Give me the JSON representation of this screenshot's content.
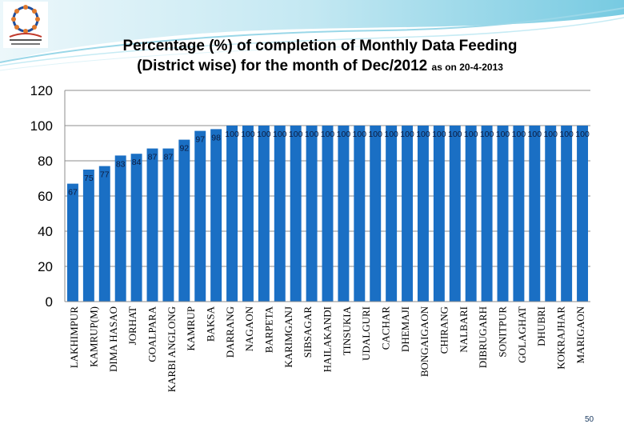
{
  "slide": {
    "title_line1": "Percentage (%) of completion of Monthly Data Feeding",
    "title_line2": "(District wise) for the month of Dec/2012",
    "title_suffix": "as on 20-4-2013",
    "page_number": "50",
    "logo": "mid-day-meal-logo"
  },
  "colors": {
    "bar": "#1a6fc4",
    "grid": "#8c8c8c",
    "swoosh_light": "#d7eef6",
    "swoosh_mid": "#8fd3e6",
    "swoosh_dark": "#4bb7d4"
  },
  "chart_data": {
    "type": "bar",
    "title": "Percentage (%) of completion of Monthly Data Feeding (District wise) for the month of Dec/2012 as on 20-4-2013",
    "xlabel": "",
    "ylabel": "",
    "ylim": [
      0,
      120
    ],
    "yticks": [
      0,
      20,
      40,
      60,
      80,
      100,
      120
    ],
    "grid": true,
    "legend": "none",
    "categories": [
      "LAKHIMPUR",
      "KAMRUP(M)",
      "DIMA HASAO",
      "JORHAT",
      "GOALPARA",
      "KARBI ANGLONG",
      "KAMRUP",
      "BAKSA",
      "DARRANG",
      "NAGAON",
      "BARPETA",
      "KARIMGANJ",
      "SIBSAGAR",
      "HAILAKANDI",
      "TINSUKIA",
      "UDALGURI",
      "CACHAR",
      "DHEMAJI",
      "BONGAIGAON",
      "CHIRANG",
      "NALBARI",
      "DIBRUGARH",
      "SONITPUR",
      "GOLAGHAT",
      "DHUBRI",
      "KOKRAJHAR",
      "MARIGAON"
    ],
    "values": [
      67,
      75,
      77,
      83,
      84,
      87,
      87,
      92,
      97,
      98,
      100,
      100,
      100,
      100,
      100,
      100,
      100,
      100,
      100,
      100,
      100,
      100,
      100,
      100,
      100,
      100,
      100
    ],
    "extra_unlabeled_bars_values": [
      100,
      100,
      100,
      100,
      100,
      100
    ]
  }
}
